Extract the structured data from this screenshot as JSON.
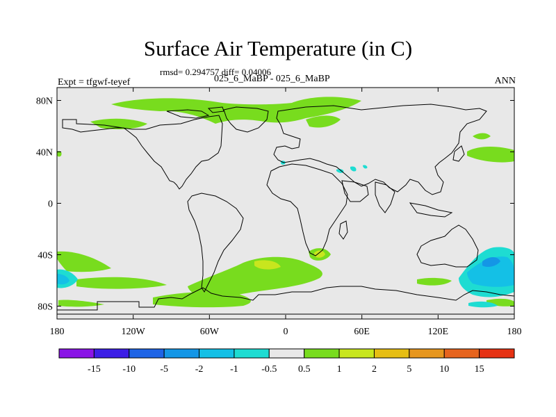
{
  "title": "Surface Air Temperature (in C)",
  "stats_line": "rmsd= 0.294757 diff= 0.04006",
  "experiment_label": "Expt = tfgwf-teyef",
  "case_line": "025_6_MaBP - 025_6_MaBP",
  "season": "ANN",
  "map": {
    "lon_range": [
      -180,
      180
    ],
    "lat_range": [
      -90,
      90
    ],
    "x_ticks": [
      {
        "value": -180,
        "label": "180"
      },
      {
        "value": -120,
        "label": "120W"
      },
      {
        "value": -60,
        "label": "60W"
      },
      {
        "value": 0,
        "label": "0"
      },
      {
        "value": 60,
        "label": "60E"
      },
      {
        "value": 120,
        "label": "120E"
      },
      {
        "value": 180,
        "label": "180"
      }
    ],
    "y_ticks": [
      {
        "value": 80,
        "label": "80N"
      },
      {
        "value": 40,
        "label": "40N"
      },
      {
        "value": 0,
        "label": "0"
      },
      {
        "value": -40,
        "label": "40S"
      },
      {
        "value": -80,
        "label": "80S"
      }
    ],
    "background_color": "#e8e8e8",
    "coastline_color": "#000000"
  },
  "colorbar": {
    "colors": [
      "#8a14e6",
      "#3c1ee6",
      "#1e64e6",
      "#1496e6",
      "#14c0e6",
      "#1edcd2",
      "#e8e8e8",
      "#78dc1e",
      "#c8e61e",
      "#e6be14",
      "#e6961e",
      "#e6641e",
      "#e63214"
    ],
    "labels": [
      "-15",
      "-10",
      "-5",
      "-2",
      "-1",
      "-0.5",
      "0.5",
      "1",
      "2",
      "5",
      "10",
      "15"
    ]
  },
  "anomalies": [
    {
      "level": "1",
      "color": "#78dc1e",
      "lon": 123,
      "lat": -68,
      "w": 10,
      "h": 10
    },
    {
      "level": "2",
      "color": "#c8e61e",
      "lon": 28,
      "lat": -39,
      "w": 5,
      "h": 3
    },
    {
      "level": "-1",
      "color": "#14c0e6",
      "lon": 158,
      "lat": -55,
      "w": 12,
      "h": 9
    },
    {
      "level": "-2",
      "color": "#1496e6",
      "lon": 162,
      "lat": -45,
      "w": 6,
      "h": 4
    }
  ]
}
